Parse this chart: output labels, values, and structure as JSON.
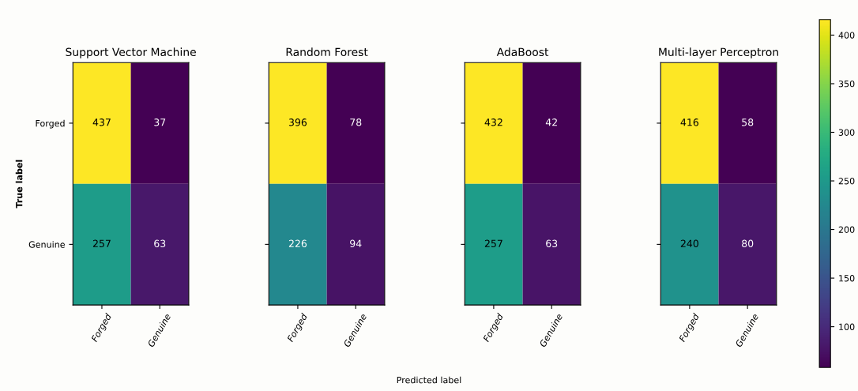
{
  "chart_data": [
    {
      "type": "heatmap",
      "title": "Support Vector Machine",
      "ylabel": "True label",
      "categories": [
        "Forged",
        "Genuine"
      ],
      "y_categories": [
        "Forged",
        "Genuine"
      ],
      "cells": [
        [
          437,
          37
        ],
        [
          257,
          63
        ]
      ],
      "data_labels": true
    },
    {
      "type": "heatmap",
      "title": "Random Forest",
      "xlabel": "Predicted label",
      "categories": [
        "Forged",
        "Genuine"
      ],
      "y_categories": [
        null,
        null
      ],
      "cells": [
        [
          396,
          78
        ],
        [
          226,
          94
        ]
      ],
      "data_labels": true
    },
    {
      "type": "heatmap",
      "title": "AdaBoost",
      "categories": [
        "Forged",
        "Genuine"
      ],
      "y_categories": [
        null,
        null
      ],
      "cells": [
        [
          432,
          42
        ],
        [
          257,
          63
        ]
      ],
      "data_labels": true
    },
    {
      "type": "heatmap",
      "title": "Multi-layer Perceptron",
      "categories": [
        "Forged",
        "Genuine"
      ],
      "y_categories": [
        null,
        null
      ],
      "cells": [
        [
          416,
          58
        ],
        [
          240,
          80
        ]
      ],
      "data_labels": true,
      "clim": [
        58,
        416
      ],
      "cticks": [
        100,
        150,
        200,
        250,
        300,
        350,
        400
      ]
    }
  ]
}
